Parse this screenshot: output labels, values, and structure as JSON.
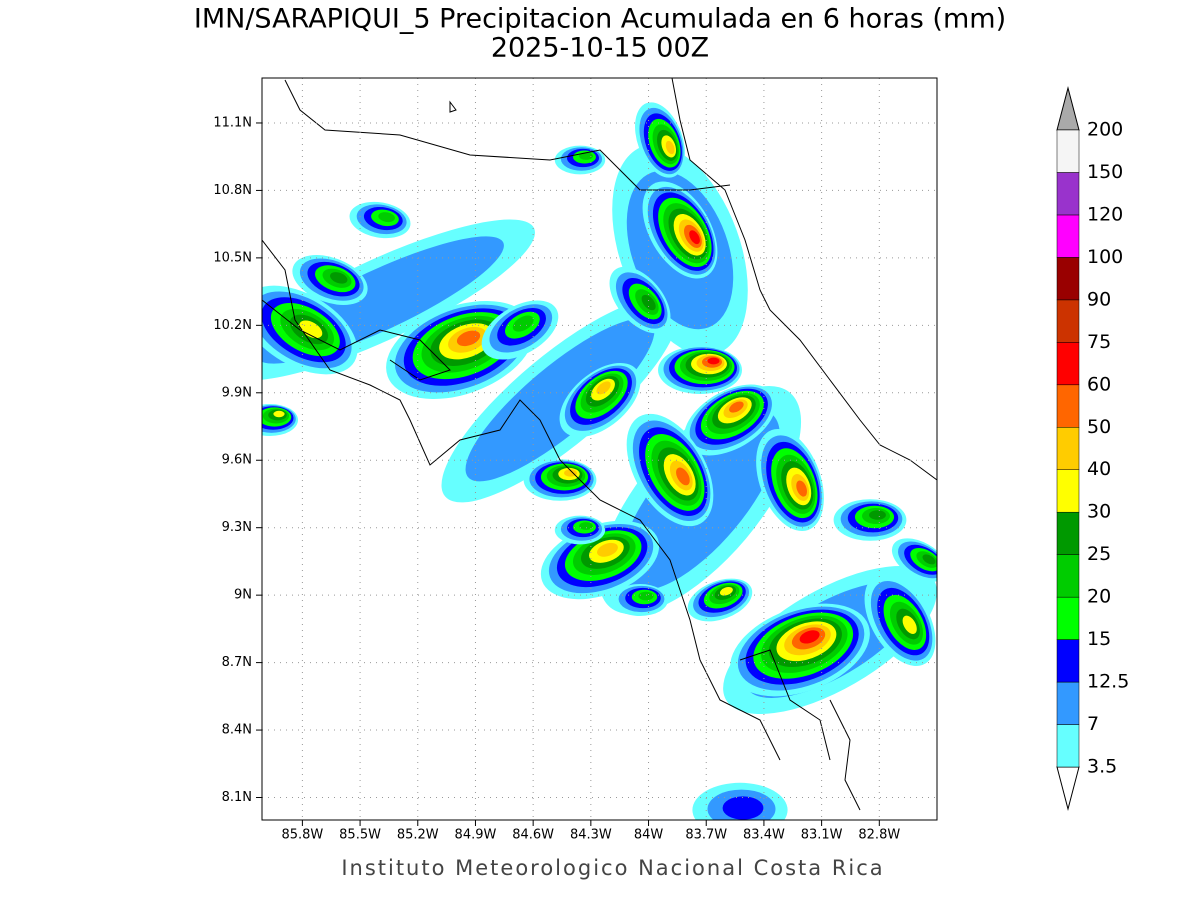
{
  "title": "IMN/SARAPIQUI_5 Precipitacion Acumulada en 6 horas (mm)",
  "subtitle": "2025-10-15 00Z",
  "footer": "Instituto Meteorologico Nacional Costa Rica",
  "map": {
    "xlim": [
      -86.01,
      -82.5
    ],
    "ylim": [
      8.0,
      11.3
    ],
    "grid": true,
    "xticks": [
      {
        "value": -85.8,
        "label": "85.8W"
      },
      {
        "value": -85.5,
        "label": "85.5W"
      },
      {
        "value": -85.2,
        "label": "85.2W"
      },
      {
        "value": -84.9,
        "label": "84.9W"
      },
      {
        "value": -84.6,
        "label": "84.6W"
      },
      {
        "value": -84.3,
        "label": "84.3W"
      },
      {
        "value": -84.0,
        "label": "84W"
      },
      {
        "value": -83.7,
        "label": "83.7W"
      },
      {
        "value": -83.4,
        "label": "83.4W"
      },
      {
        "value": -83.1,
        "label": "83.1W"
      },
      {
        "value": -82.8,
        "label": "82.8W"
      }
    ],
    "yticks": [
      {
        "value": 8.1,
        "label": "8.1N"
      },
      {
        "value": 8.4,
        "label": "8.4N"
      },
      {
        "value": 8.7,
        "label": "8.7N"
      },
      {
        "value": 9.0,
        "label": "9N"
      },
      {
        "value": 9.3,
        "label": "9.3N"
      },
      {
        "value": 9.6,
        "label": "9.6N"
      },
      {
        "value": 9.9,
        "label": "9.9N"
      },
      {
        "value": 10.2,
        "label": "10.2N"
      },
      {
        "value": 10.5,
        "label": "10.5N"
      },
      {
        "value": 10.8,
        "label": "10.8N"
      },
      {
        "value": 11.1,
        "label": "11.1N"
      }
    ]
  },
  "colorbar": {
    "levels": [
      3.5,
      7,
      12.5,
      15,
      20,
      25,
      30,
      40,
      50,
      60,
      75,
      90,
      100,
      120,
      150,
      200
    ],
    "colors": [
      "#66ffff",
      "#3399ff",
      "#0000ff",
      "#00ff00",
      "#00cc00",
      "#009900",
      "#ffff00",
      "#ffcc00",
      "#ff6600",
      "#ff0000",
      "#cc3300",
      "#990000",
      "#ff00ff",
      "#9933cc",
      "#f5f5f5"
    ],
    "below_color": "#ffffff",
    "above_color": "#aaaaaa"
  }
}
